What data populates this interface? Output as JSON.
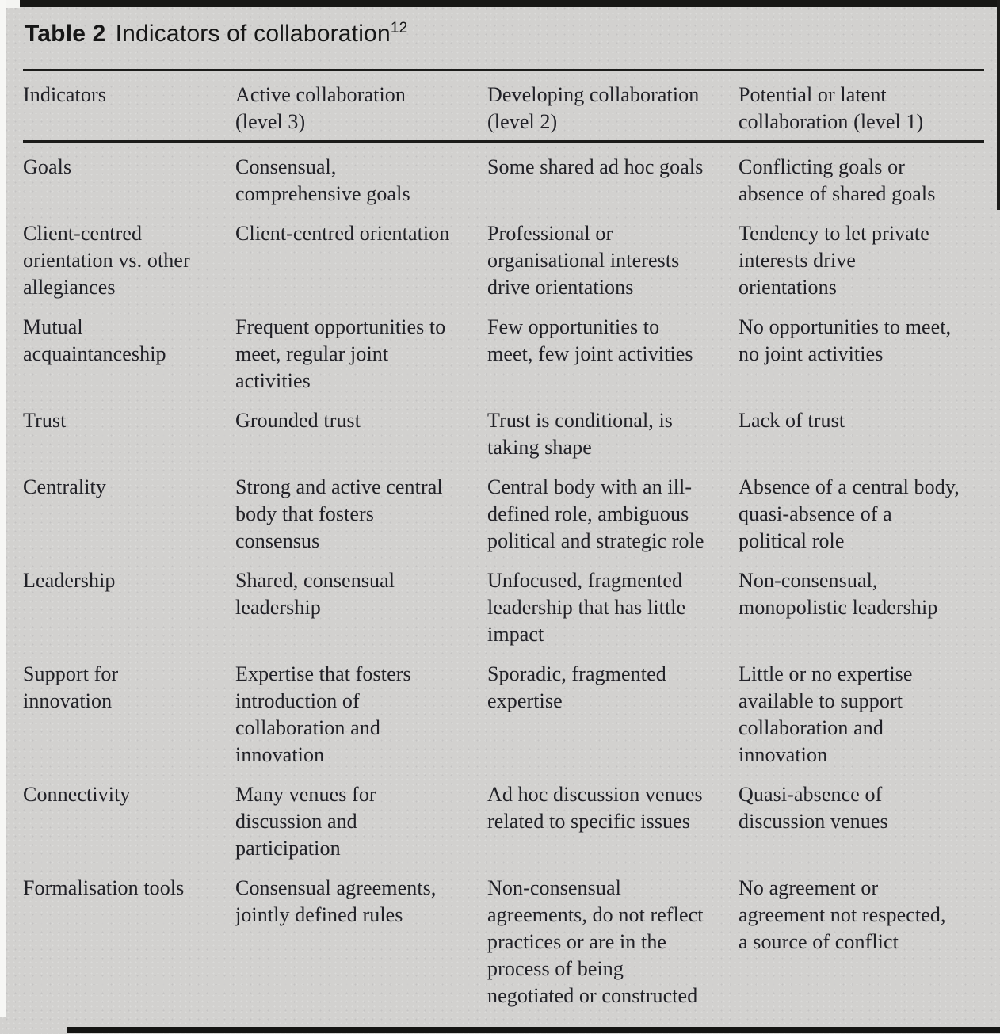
{
  "caption": {
    "label": "Table 2",
    "title": "Indicators of collaboration",
    "footnote_ref": "12"
  },
  "colors": {
    "page_background": "#d2d1cf",
    "text": "#212127",
    "rule": "#1b1b19"
  },
  "table": {
    "columns": [
      "Indicators",
      "Active collaboration\n(level 3)",
      "Developing collaboration\n(level 2)",
      "Potential or latent\ncollaboration (level 1)"
    ],
    "rows": [
      {
        "indicator": "Goals",
        "level3": "Consensual,\ncomprehensive goals",
        "level2": "Some shared ad hoc goals",
        "level1": "Conflicting goals or\nabsence of shared goals"
      },
      {
        "indicator": "Client-centred\norientation vs. other\nallegiances",
        "level3": "Client-centred orientation",
        "level2": "Professional or\norganisational interests\ndrive orientations",
        "level1": "Tendency to let private\ninterests drive\norientations"
      },
      {
        "indicator": "Mutual\nacquaintanceship",
        "level3": "Frequent opportunities to\nmeet, regular joint\nactivities",
        "level2": "Few opportunities to\nmeet, few joint activities",
        "level1": "No opportunities to meet,\nno joint activities"
      },
      {
        "indicator": "Trust",
        "level3": "Grounded trust",
        "level2": "Trust is conditional, is\ntaking shape",
        "level1": "Lack of trust"
      },
      {
        "indicator": "Centrality",
        "level3": "Strong and active central\nbody that fosters\nconsensus",
        "level2": "Central body with an ill-\ndefined role, ambiguous\npolitical and strategic role",
        "level1": "Absence of a central body,\nquasi-absence of a\npolitical role"
      },
      {
        "indicator": "Leadership",
        "level3": "Shared, consensual\nleadership",
        "level2": "Unfocused, fragmented\nleadership that has little\nimpact",
        "level1": "Non-consensual,\nmonopolistic leadership"
      },
      {
        "indicator": "Support for\ninnovation",
        "level3": "Expertise that fosters\nintroduction of\ncollaboration and\ninnovation",
        "level2": "Sporadic, fragmented\nexpertise",
        "level1": "Little or no expertise\navailable to support\ncollaboration and\ninnovation"
      },
      {
        "indicator": "Connectivity",
        "level3": "Many venues for\ndiscussion and\nparticipation",
        "level2": "Ad hoc discussion venues\nrelated to specific issues",
        "level1": "Quasi-absence of\ndiscussion venues"
      },
      {
        "indicator": "Formalisation tools",
        "level3": "Consensual agreements,\njointly defined rules",
        "level2": "Non-consensual\nagreements, do not reflect\npractices or are in the\nprocess of being\nnegotiated or constructed",
        "level1": "No agreement or\nagreement not respected,\na source of conflict"
      }
    ]
  }
}
